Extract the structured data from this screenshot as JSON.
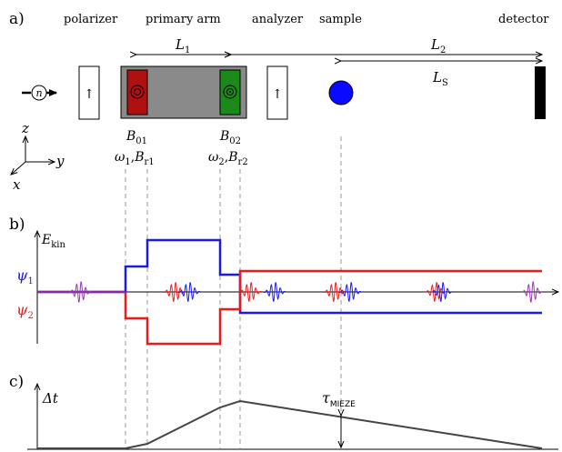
{
  "panels": {
    "a": "a)",
    "b": "b)",
    "c": "c)"
  },
  "components": {
    "polarizer": "polarizer",
    "primary_arm": "primary arm",
    "analyzer": "analyzer",
    "sample": "sample",
    "detector": "detector"
  },
  "distances": {
    "L1": "L",
    "L1_sub": "1",
    "L2": "L",
    "L2_sub": "2",
    "LS": "L",
    "LS_sub": "S"
  },
  "neutron": "n",
  "spin_arrow": "↑",
  "axes3d": {
    "z": "z",
    "y": "y",
    "x": "x"
  },
  "fields": {
    "B01": "B",
    "B01_sub": "01",
    "B02": "B",
    "B02_sub": "02",
    "omega1": "ω",
    "omega1_sub": "1",
    "Br1": "B",
    "Br1_sub": "r1",
    "omega2": "ω",
    "omega2_sub": "2",
    "Br2": "B",
    "Br2_sub": "r2",
    "comma": ","
  },
  "panel_b": {
    "E": "E",
    "E_sub": "kin",
    "psi1": "ψ",
    "psi1_sub": "1",
    "psi2": "ψ",
    "psi2_sub": "2"
  },
  "panel_c": {
    "dt": "Δt",
    "tau": "τ",
    "tau_sub": "MIEZE"
  },
  "colors": {
    "red_coil": "#b01010",
    "green_coil": "#1a8a1a",
    "arm_gray": "#8a8a8a",
    "sample_blue": "#0a0aff",
    "psi1": "#1a1aee",
    "psi2": "#ee1a1a",
    "curve": "#444444"
  }
}
